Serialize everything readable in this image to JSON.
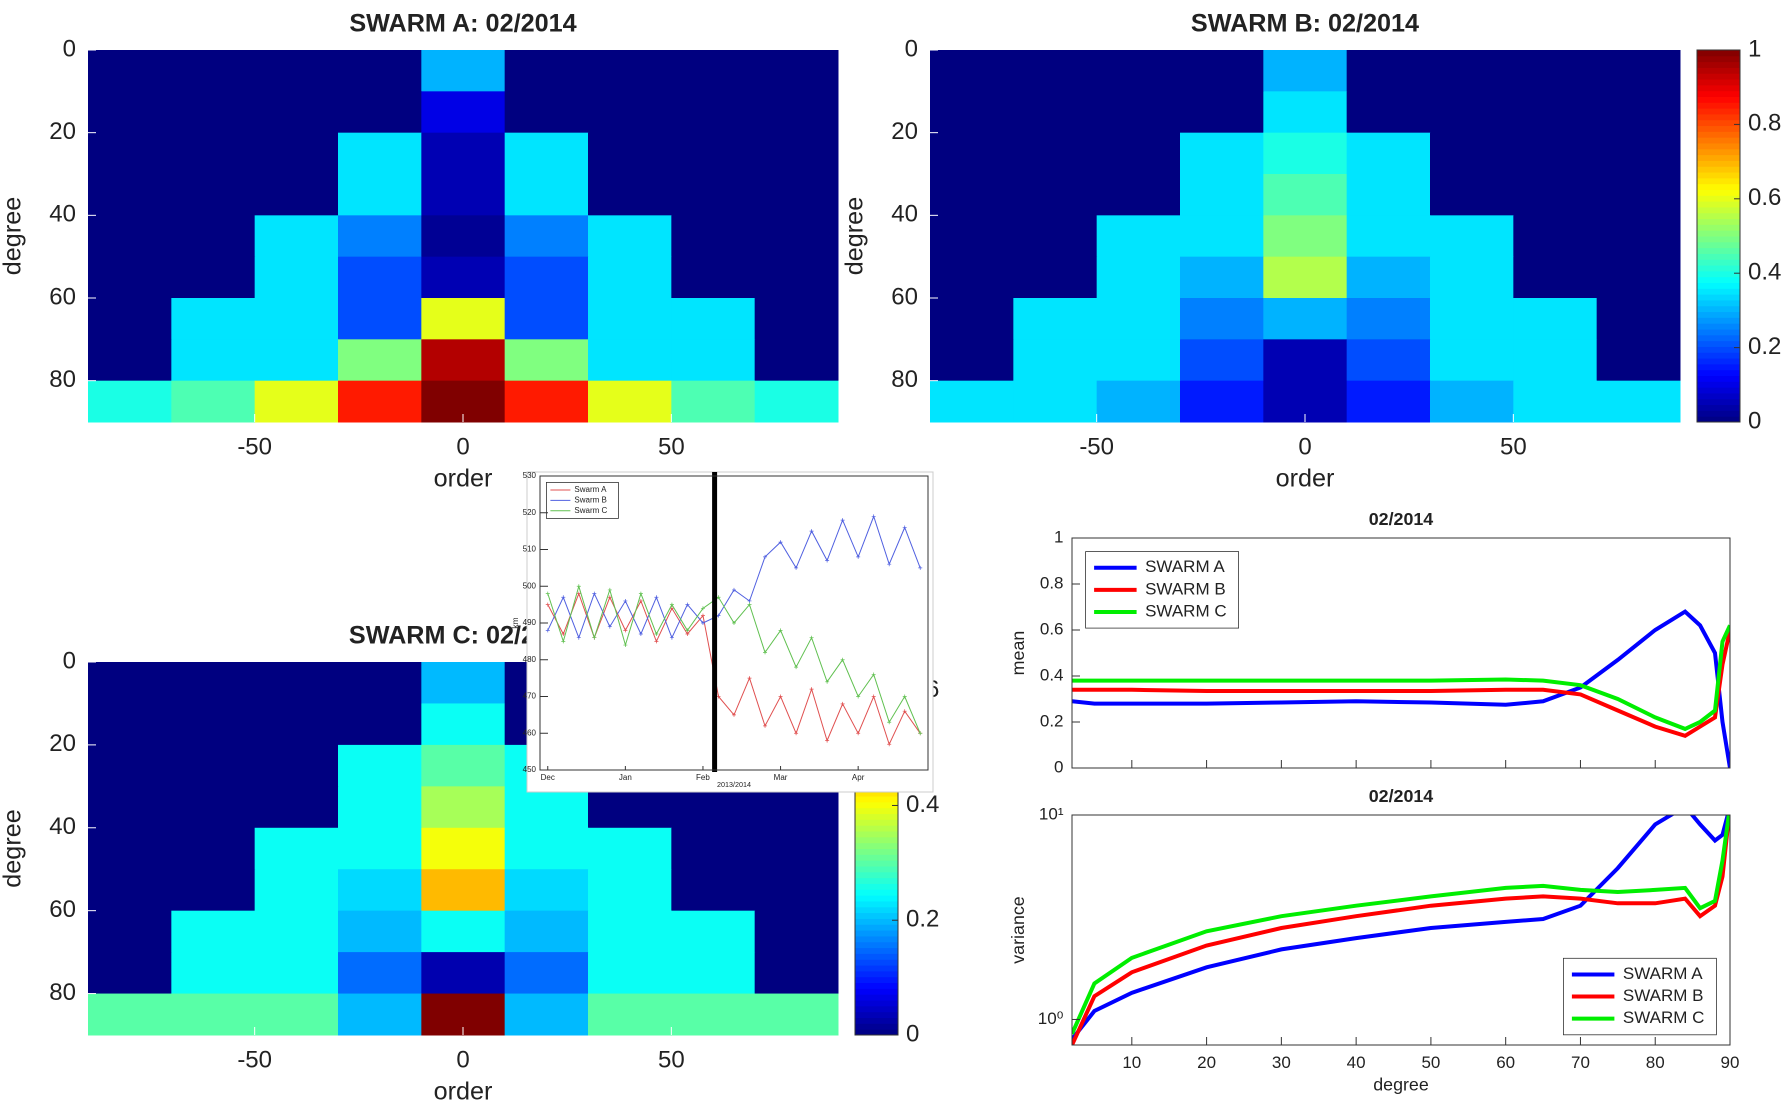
{
  "chart_data": [
    {
      "type": "heatmap",
      "title": "SWARM A: 02/2014",
      "x_label": "order",
      "y_label": "degree",
      "xlim": [
        -90,
        90
      ],
      "ylim": [
        0,
        90
      ],
      "y_reversed": true,
      "xticks": [
        -50,
        0,
        50
      ],
      "yticks": [
        0,
        20,
        40,
        60,
        80
      ],
      "colormap": "jet",
      "clim": [
        0,
        1
      ],
      "x": [
        -80,
        -60,
        -40,
        -20,
        0,
        20,
        40,
        60,
        80
      ],
      "y": [
        5,
        15,
        25,
        35,
        45,
        55,
        65,
        75,
        85
      ],
      "z": [
        [
          0,
          0,
          0,
          0,
          0.3,
          0,
          0,
          0,
          0
        ],
        [
          0,
          0,
          0,
          0,
          0.1,
          0,
          0,
          0,
          0
        ],
        [
          0,
          0,
          0,
          0.35,
          0.05,
          0.35,
          0,
          0,
          0
        ],
        [
          0,
          0,
          0,
          0.35,
          0.05,
          0.35,
          0,
          0,
          0
        ],
        [
          0,
          0,
          0.35,
          0.25,
          0.02,
          0.25,
          0.35,
          0,
          0
        ],
        [
          0,
          0,
          0.35,
          0.2,
          0.05,
          0.2,
          0.35,
          0,
          0
        ],
        [
          0,
          0.35,
          0.35,
          0.2,
          0.6,
          0.2,
          0.35,
          0.35,
          0
        ],
        [
          0,
          0.35,
          0.35,
          0.5,
          0.95,
          0.5,
          0.35,
          0.35,
          0
        ],
        [
          0.4,
          0.45,
          0.6,
          0.85,
          1,
          0.85,
          0.6,
          0.45,
          0.4
        ]
      ]
    },
    {
      "type": "heatmap",
      "title": "SWARM B: 02/2014",
      "x_label": "order",
      "y_label": "degree",
      "xlim": [
        -90,
        90
      ],
      "ylim": [
        0,
        90
      ],
      "y_reversed": true,
      "xticks": [
        -50,
        0,
        50
      ],
      "yticks": [
        0,
        20,
        40,
        60,
        80
      ],
      "colormap": "jet",
      "clim": [
        0,
        1
      ],
      "colorbar_ticks": [
        0,
        0.2,
        0.4,
        0.6,
        0.8,
        1
      ],
      "x": [
        -80,
        -60,
        -40,
        -20,
        0,
        20,
        40,
        60,
        80
      ],
      "y": [
        5,
        15,
        25,
        35,
        45,
        55,
        65,
        75,
        85
      ],
      "z": [
        [
          0,
          0,
          0,
          0,
          0.3,
          0,
          0,
          0,
          0
        ],
        [
          0,
          0,
          0,
          0,
          0.35,
          0,
          0,
          0,
          0
        ],
        [
          0,
          0,
          0,
          0.35,
          0.4,
          0.35,
          0,
          0,
          0
        ],
        [
          0,
          0,
          0,
          0.35,
          0.45,
          0.35,
          0,
          0,
          0
        ],
        [
          0,
          0,
          0.35,
          0.35,
          0.5,
          0.35,
          0.35,
          0,
          0
        ],
        [
          0,
          0,
          0.35,
          0.3,
          0.55,
          0.3,
          0.35,
          0,
          0
        ],
        [
          0,
          0.35,
          0.35,
          0.25,
          0.3,
          0.25,
          0.35,
          0.35,
          0
        ],
        [
          0,
          0.35,
          0.35,
          0.2,
          0.05,
          0.2,
          0.35,
          0.35,
          0
        ],
        [
          0.35,
          0.35,
          0.3,
          0.15,
          0.05,
          0.15,
          0.3,
          0.35,
          0.35
        ]
      ]
    },
    {
      "type": "heatmap",
      "title": "SWARM C: 02/2014",
      "x_label": "order",
      "y_label": "degree",
      "xlim": [
        -90,
        90
      ],
      "ylim": [
        0,
        90
      ],
      "y_reversed": true,
      "xticks": [
        -50,
        0,
        50
      ],
      "yticks": [
        0,
        20,
        40,
        60,
        80
      ],
      "colormap": "jet",
      "clim": [
        0,
        0.65
      ],
      "colorbar_ticks": [
        0,
        0.2,
        0.4,
        0.6
      ],
      "x": [
        -80,
        -60,
        -40,
        -20,
        0,
        20,
        40,
        60,
        80
      ],
      "y": [
        5,
        15,
        25,
        35,
        45,
        55,
        65,
        75,
        85
      ],
      "z": [
        [
          0,
          0,
          0,
          0,
          0.2,
          0,
          0,
          0,
          0
        ],
        [
          0,
          0,
          0,
          0,
          0.25,
          0,
          0,
          0,
          0
        ],
        [
          0,
          0,
          0,
          0.25,
          0.3,
          0.25,
          0,
          0,
          0
        ],
        [
          0,
          0,
          0,
          0.25,
          0.35,
          0.25,
          0,
          0,
          0
        ],
        [
          0,
          0,
          0.25,
          0.25,
          0.4,
          0.25,
          0.25,
          0,
          0
        ],
        [
          0,
          0,
          0.25,
          0.22,
          0.45,
          0.22,
          0.25,
          0,
          0
        ],
        [
          0,
          0.25,
          0.25,
          0.2,
          0.25,
          0.2,
          0.25,
          0.25,
          0
        ],
        [
          0,
          0.25,
          0.25,
          0.15,
          0.03,
          0.15,
          0.25,
          0.25,
          0
        ],
        [
          0.3,
          0.3,
          0.3,
          0.2,
          0.7,
          0.2,
          0.3,
          0.3,
          0.3
        ]
      ]
    },
    {
      "type": "line",
      "x_label": "2013/2014",
      "y_label": "km",
      "legend": "upper left",
      "categories": [
        "Dec",
        null,
        null,
        null,
        null,
        "Jan",
        null,
        null,
        null,
        null,
        "Feb",
        null,
        null,
        null,
        null,
        "Mar",
        null,
        null,
        null,
        null,
        "Apr",
        null,
        null,
        null,
        null
      ],
      "ylim": [
        450,
        530
      ],
      "yticks": [
        450,
        460,
        470,
        480,
        490,
        500,
        510,
        520,
        530
      ],
      "series": [
        {
          "name": "Swarm A",
          "color": "#e05050",
          "values": [
            495,
            487,
            498,
            486,
            497,
            488,
            496,
            485,
            494,
            487,
            492,
            470,
            465,
            475,
            462,
            470,
            460,
            472,
            458,
            468,
            460,
            470,
            457,
            466,
            460
          ]
        },
        {
          "name": "Swarm B",
          "color": "#5060e0",
          "values": [
            488,
            497,
            486,
            498,
            489,
            496,
            487,
            497,
            486,
            495,
            490,
            492,
            499,
            496,
            508,
            512,
            505,
            515,
            507,
            518,
            508,
            519,
            506,
            516,
            505
          ]
        },
        {
          "name": "Swarm C",
          "color": "#60c050",
          "values": [
            498,
            485,
            500,
            486,
            499,
            484,
            498,
            487,
            495,
            488,
            494,
            497,
            490,
            495,
            482,
            488,
            478,
            486,
            474,
            480,
            470,
            476,
            463,
            470,
            460
          ]
        }
      ]
    },
    {
      "type": "line",
      "title": "02/2014",
      "y_label": "mean",
      "legend": "upper left",
      "x": [
        2,
        5,
        10,
        20,
        30,
        40,
        50,
        60,
        65,
        70,
        75,
        80,
        84,
        86,
        88,
        89,
        90
      ],
      "xlim": [
        2,
        90
      ],
      "xticks": [
        10,
        20,
        30,
        40,
        50,
        60,
        70,
        80,
        90
      ],
      "ylim": [
        0,
        1
      ],
      "yticks": [
        0,
        0.2,
        0.4,
        0.6,
        0.8,
        1
      ],
      "series": [
        {
          "name": "SWARM A",
          "color": "#0000ff",
          "values": [
            0.29,
            0.28,
            0.28,
            0.28,
            0.285,
            0.29,
            0.285,
            0.275,
            0.29,
            0.35,
            0.47,
            0.6,
            0.68,
            0.62,
            0.5,
            0.2,
            0.0
          ]
        },
        {
          "name": "SWARM B",
          "color": "#ff0000",
          "values": [
            0.34,
            0.34,
            0.34,
            0.335,
            0.335,
            0.335,
            0.335,
            0.34,
            0.34,
            0.32,
            0.25,
            0.18,
            0.14,
            0.18,
            0.22,
            0.45,
            0.6
          ]
        },
        {
          "name": "SWARM C",
          "color": "#00ee00",
          "values": [
            0.38,
            0.38,
            0.38,
            0.38,
            0.38,
            0.38,
            0.38,
            0.385,
            0.38,
            0.36,
            0.3,
            0.22,
            0.17,
            0.2,
            0.25,
            0.55,
            0.62
          ]
        }
      ]
    },
    {
      "type": "line",
      "title": "02/2014",
      "y_label": "variance",
      "x_label": "degree",
      "legend": "lower right",
      "yscale": "log",
      "x": [
        2,
        5,
        10,
        20,
        30,
        40,
        50,
        60,
        65,
        70,
        75,
        80,
        84,
        86,
        88,
        89,
        90
      ],
      "xlim": [
        2,
        90
      ],
      "xticks": [
        10,
        20,
        30,
        40,
        50,
        60,
        70,
        80,
        90
      ],
      "ylim": [
        0.75,
        10
      ],
      "yticks": [
        {
          "value": 1,
          "label": "10⁰"
        },
        {
          "value": 10,
          "label": "10¹"
        }
      ],
      "series": [
        {
          "name": "SWARM A",
          "color": "#0000ff",
          "values": [
            0.8,
            1.1,
            1.35,
            1.8,
            2.2,
            2.5,
            2.8,
            3.0,
            3.1,
            3.6,
            5.5,
            9,
            11,
            9,
            7.5,
            8,
            11
          ]
        },
        {
          "name": "SWARM B",
          "color": "#ff0000",
          "values": [
            0.75,
            1.3,
            1.7,
            2.3,
            2.8,
            3.2,
            3.6,
            3.9,
            4.0,
            3.9,
            3.7,
            3.7,
            3.9,
            3.2,
            3.6,
            5,
            11
          ]
        },
        {
          "name": "SWARM C",
          "color": "#00ee00",
          "values": [
            0.85,
            1.5,
            2.0,
            2.7,
            3.2,
            3.6,
            4.0,
            4.4,
            4.5,
            4.3,
            4.2,
            4.3,
            4.4,
            3.5,
            3.8,
            6,
            11
          ]
        }
      ]
    }
  ]
}
